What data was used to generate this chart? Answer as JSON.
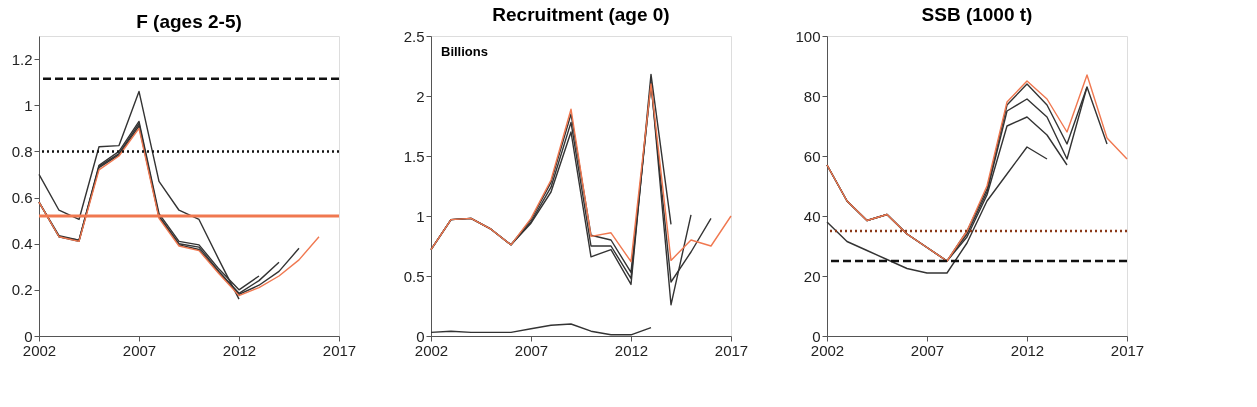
{
  "chart_data": [
    {
      "type": "line",
      "title": "F (ages 2-5)",
      "xlim": [
        2002,
        2017
      ],
      "xticks": [
        2002,
        2007,
        2012,
        2017
      ],
      "ylim": [
        0,
        1.3
      ],
      "yticks": [
        0,
        0.2,
        0.4,
        0.6,
        0.8,
        1,
        1.2
      ],
      "grid": false,
      "legend": false,
      "line_style": "solid",
      "ref_lines": [
        {
          "axis": "y",
          "value": 1.115,
          "color": "#111111",
          "line_style": "dashed"
        },
        {
          "axis": "y",
          "value": 0.8,
          "color": "#111111",
          "line_style": "dotted"
        },
        {
          "axis": "y",
          "value": 0.52,
          "color": "#f07850",
          "line_style": "solid"
        }
      ],
      "series": [
        {
          "color": "#333333",
          "x": [
            2002,
            2003,
            2004,
            2005,
            2006,
            2007,
            2008,
            2009,
            2010,
            2011,
            2012
          ],
          "values": [
            0.7,
            0.545,
            0.505,
            0.82,
            0.825,
            1.06,
            0.67,
            0.545,
            0.505,
            0.33,
            0.16
          ]
        },
        {
          "color": "#333333",
          "x": [
            2002,
            2003,
            2004,
            2005,
            2006,
            2007,
            2008,
            2009,
            2010,
            2011,
            2012,
            2013
          ],
          "values": [
            0.58,
            0.435,
            0.415,
            0.74,
            0.8,
            0.93,
            0.53,
            0.41,
            0.395,
            0.29,
            0.2,
            0.26
          ]
        },
        {
          "color": "#333333",
          "x": [
            2002,
            2003,
            2004,
            2005,
            2006,
            2007,
            2008,
            2009,
            2010,
            2011,
            2012,
            2013,
            2014
          ],
          "values": [
            0.58,
            0.43,
            0.415,
            0.735,
            0.79,
            0.92,
            0.52,
            0.4,
            0.385,
            0.28,
            0.185,
            0.24,
            0.32
          ]
        },
        {
          "color": "#333333",
          "x": [
            2002,
            2003,
            2004,
            2005,
            2006,
            2007,
            2008,
            2009,
            2010,
            2011,
            2012,
            2013,
            2014,
            2015
          ],
          "values": [
            0.58,
            0.43,
            0.41,
            0.73,
            0.785,
            0.91,
            0.515,
            0.395,
            0.375,
            0.275,
            0.18,
            0.22,
            0.28,
            0.38
          ]
        },
        {
          "color": "#f07850",
          "x": [
            2002,
            2003,
            2004,
            2005,
            2006,
            2007,
            2008,
            2009,
            2010,
            2011,
            2012,
            2013,
            2014,
            2015,
            2016
          ],
          "values": [
            0.58,
            0.43,
            0.41,
            0.72,
            0.78,
            0.9,
            0.51,
            0.39,
            0.37,
            0.27,
            0.175,
            0.21,
            0.26,
            0.33,
            0.43
          ]
        }
      ]
    },
    {
      "type": "line",
      "title": "Recruitment (age 0)",
      "annotations": [
        "Billions"
      ],
      "xlim": [
        2002,
        2017
      ],
      "xticks": [
        2002,
        2007,
        2012,
        2017
      ],
      "ylim": [
        0,
        2.5
      ],
      "yticks": [
        0,
        0.5,
        1,
        1.5,
        2,
        2.5
      ],
      "grid": false,
      "legend": false,
      "line_style": "solid",
      "series": [
        {
          "color": "#333333",
          "x": [
            2002,
            2003,
            2004,
            2005,
            2006,
            2007,
            2008,
            2009,
            2010,
            2011,
            2012,
            2013
          ],
          "values": [
            0.03,
            0.04,
            0.03,
            0.03,
            0.03,
            0.06,
            0.09,
            0.1,
            0.04,
            0.01,
            0.01,
            0.07
          ]
        },
        {
          "color": "#333333",
          "x": [
            2002,
            2003,
            2004,
            2005,
            2006,
            2007,
            2008,
            2009,
            2010,
            2011,
            2012,
            2013,
            2014
          ],
          "values": [
            0.72,
            0.97,
            0.98,
            0.89,
            0.76,
            0.94,
            1.2,
            1.7,
            0.66,
            0.72,
            0.43,
            2.18,
            0.93
          ]
        },
        {
          "color": "#333333",
          "x": [
            2002,
            2003,
            2004,
            2005,
            2006,
            2007,
            2008,
            2009,
            2010,
            2011,
            2012,
            2013,
            2014,
            2015
          ],
          "values": [
            0.72,
            0.97,
            0.98,
            0.89,
            0.76,
            0.95,
            1.24,
            1.78,
            0.75,
            0.75,
            0.48,
            2.12,
            0.26,
            1.01
          ]
        },
        {
          "color": "#333333",
          "x": [
            2002,
            2003,
            2004,
            2005,
            2006,
            2007,
            2008,
            2009,
            2010,
            2011,
            2012,
            2013,
            2014,
            2015,
            2016
          ],
          "values": [
            0.72,
            0.97,
            0.98,
            0.89,
            0.76,
            0.97,
            1.28,
            1.85,
            0.84,
            0.8,
            0.53,
            2.1,
            0.45,
            0.7,
            0.98
          ]
        },
        {
          "color": "#f07850",
          "x": [
            2002,
            2003,
            2004,
            2005,
            2006,
            2007,
            2008,
            2009,
            2010,
            2011,
            2012,
            2013,
            2014,
            2015,
            2016,
            2017
          ],
          "values": [
            0.72,
            0.97,
            0.98,
            0.89,
            0.76,
            0.98,
            1.3,
            1.89,
            0.83,
            0.86,
            0.62,
            2.1,
            0.63,
            0.8,
            0.75,
            1.0
          ]
        }
      ]
    },
    {
      "type": "line",
      "title": "SSB (1000 t)",
      "xlim": [
        2002,
        2017
      ],
      "xticks": [
        2002,
        2007,
        2012,
        2017
      ],
      "ylim": [
        0,
        100
      ],
      "yticks": [
        0,
        20,
        40,
        60,
        80,
        100
      ],
      "grid": false,
      "legend": false,
      "line_style": "solid",
      "ref_lines": [
        {
          "axis": "y",
          "value": 35,
          "color": "#8b3a1a",
          "line_style": "dotted"
        },
        {
          "axis": "y",
          "value": 25,
          "color": "#111111",
          "line_style": "dashed"
        }
      ],
      "series": [
        {
          "color": "#333333",
          "x": [
            2002,
            2003,
            2004,
            2005,
            2006,
            2007,
            2008,
            2009,
            2010,
            2011,
            2012,
            2013
          ],
          "values": [
            38,
            31.5,
            28.5,
            25.5,
            22.5,
            21,
            21,
            31,
            45,
            54,
            63,
            59
          ]
        },
        {
          "color": "#333333",
          "x": [
            2002,
            2003,
            2004,
            2005,
            2006,
            2007,
            2008,
            2009,
            2010,
            2011,
            2012,
            2013,
            2014
          ],
          "values": [
            57,
            45,
            38.5,
            40.5,
            34,
            29.5,
            25,
            33,
            47,
            70,
            73,
            67,
            57
          ]
        },
        {
          "color": "#333333",
          "x": [
            2002,
            2003,
            2004,
            2005,
            2006,
            2007,
            2008,
            2009,
            2010,
            2011,
            2012,
            2013,
            2014,
            2015
          ],
          "values": [
            57,
            45,
            38.5,
            40.5,
            34,
            29.5,
            25,
            34,
            48,
            75,
            79,
            73,
            59,
            83
          ]
        },
        {
          "color": "#333333",
          "x": [
            2002,
            2003,
            2004,
            2005,
            2006,
            2007,
            2008,
            2009,
            2010,
            2011,
            2012,
            2013,
            2014,
            2015,
            2016
          ],
          "values": [
            57,
            45,
            38.5,
            40.5,
            34,
            29.5,
            25,
            35,
            49,
            77,
            84,
            77,
            64,
            83,
            64
          ]
        },
        {
          "color": "#f07850",
          "x": [
            2002,
            2003,
            2004,
            2005,
            2006,
            2007,
            2008,
            2009,
            2010,
            2011,
            2012,
            2013,
            2014,
            2015,
            2016,
            2017
          ],
          "values": [
            57,
            45,
            38.5,
            40.5,
            34,
            29.5,
            25,
            35,
            50,
            78,
            85,
            79,
            68,
            87,
            66,
            59
          ]
        }
      ]
    }
  ]
}
